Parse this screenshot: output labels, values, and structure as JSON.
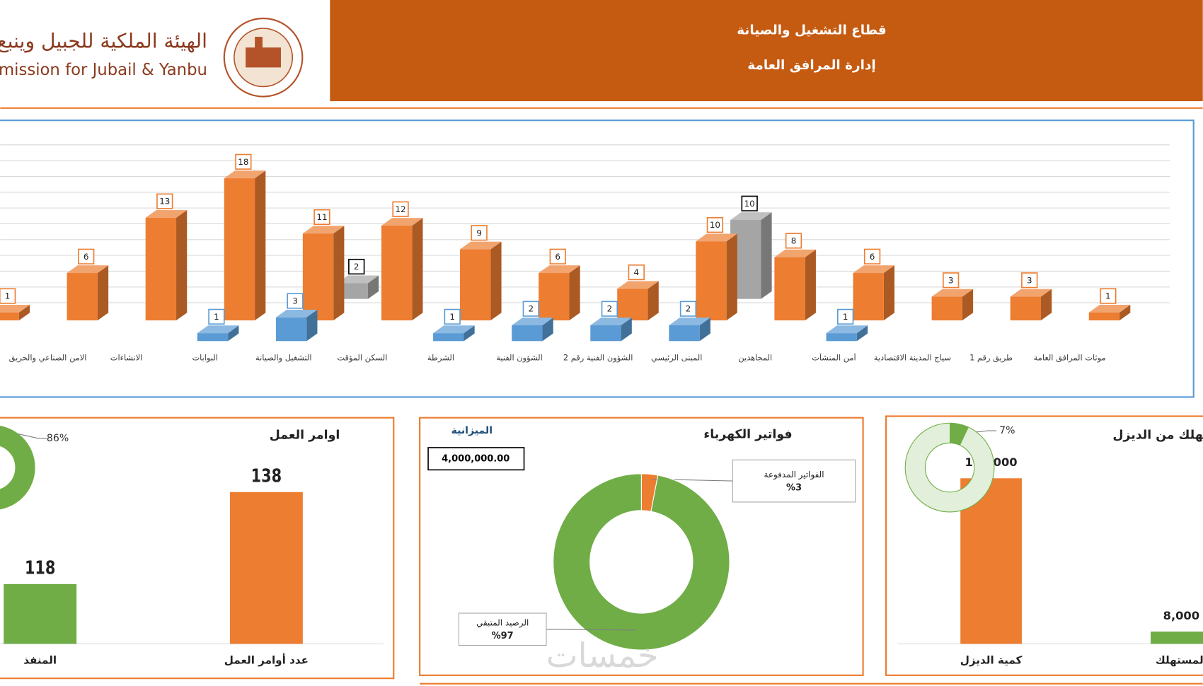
{
  "header": {
    "org_ar": "الهيئة الملكية للجبيل وينبع",
    "org_en": "Royal Commission for Jubail & Yanbu",
    "sector": "قطاع التشغيل والصيانة",
    "department": "إدارة المرافق العامة",
    "watermark": "خمسات"
  },
  "chart_data": [
    {
      "type": "bar3d",
      "categories": [
        null,
        "الامن الصناعي والحريق",
        "الانشاءات",
        "البوابات",
        "التشغيل والصيانة",
        "السكن المؤقت",
        "الشرطة",
        "الشؤون الفنية",
        "الشؤون الفنية رقم 2",
        "المبنى الرئيسي",
        "المجاهدين",
        "أمن المنشآت",
        "سياج المدينة الاقتصادية",
        "طريق رقم 1",
        "موثات المرافق العامة"
      ],
      "series": [
        {
          "color": "#ed7d31",
          "values": [
            1,
            6,
            13,
            18,
            11,
            12,
            9,
            6,
            4,
            10,
            8,
            6,
            3,
            3,
            1
          ]
        },
        {
          "color": "#5b9bd5",
          "values": [
            null,
            null,
            null,
            1,
            3,
            null,
            1,
            2,
            2,
            2,
            null,
            1,
            null,
            null,
            null
          ]
        },
        {
          "color": "#a5a5a5",
          "values": [
            null,
            null,
            null,
            null,
            2,
            null,
            null,
            null,
            null,
            10,
            null,
            null,
            null,
            null,
            null
          ]
        }
      ],
      "ylim": [
        0,
        20
      ],
      "yticks": [
        0,
        2,
        4,
        6,
        8,
        10,
        12,
        14,
        16,
        18,
        20
      ],
      "grid": true
    },
    {
      "type": "bar",
      "title": "اوامر العمل",
      "categories": [
        "عدد أوامر العمل",
        "المنفذ"
      ],
      "values": [
        138,
        118
      ],
      "colors": [
        "#ed7d31",
        "#70ad47"
      ],
      "ylim": [
        105,
        145
      ]
    },
    {
      "type": "donut",
      "values": [
        86
      ],
      "value_labels": [
        "86%"
      ],
      "color": "#70ad47"
    },
    {
      "type": "pie",
      "title": "فواتير الكهرباء",
      "categories": [
        "الفواتير المدفوعة",
        "الرصيد المتبقي"
      ],
      "values": [
        3,
        97
      ],
      "value_labels": [
        "%3",
        "%97"
      ],
      "colors": [
        "#ed7d31",
        "#70ad47"
      ],
      "budget_label": "الميزانية",
      "budget": "4,000,000.00"
    },
    {
      "type": "bar",
      "title": "المستهلك من الديزل",
      "categories": [
        "المستهلك",
        "كمية الديزل"
      ],
      "values": [
        8000,
        108000
      ],
      "value_labels": [
        "8,000",
        "108,000"
      ],
      "colors": [
        "#70ad47",
        "#ed7d31"
      ],
      "ylim": [
        0,
        120000
      ]
    },
    {
      "type": "donut",
      "values": [
        7
      ],
      "value_labels": [
        "7%"
      ],
      "color": "#70ad47"
    }
  ]
}
